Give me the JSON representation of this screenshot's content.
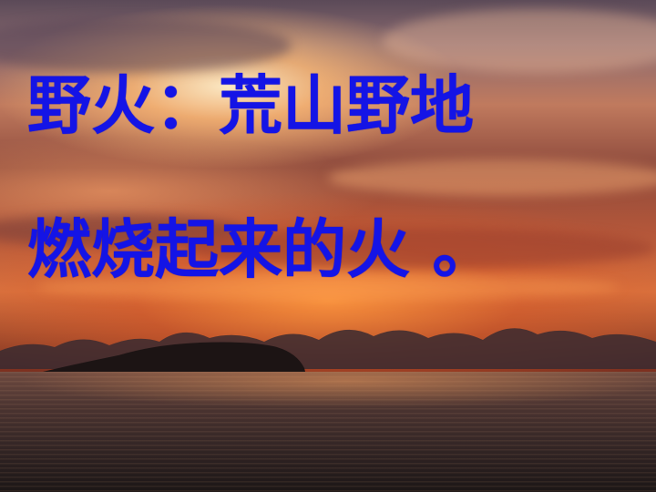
{
  "slide": {
    "caption_line_1": "野火：荒山野地",
    "caption_line_2": "燃烧起来的火  。"
  },
  "colors": {
    "caption_text": "#1414e6",
    "sky_top": "#5b4a58",
    "sky_glow": "#d9733f",
    "sea": "#2e2222"
  }
}
